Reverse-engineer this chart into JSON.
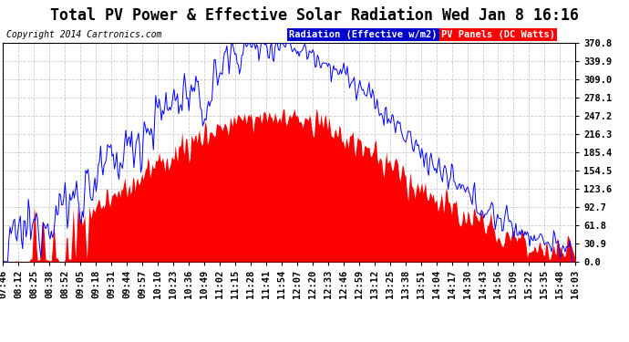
{
  "title": "Total PV Power & Effective Solar Radiation Wed Jan 8 16:16",
  "copyright": "Copyright 2014 Cartronics.com",
  "legend_radiation": "Radiation (Effective w/m2)",
  "legend_panels": "PV Panels (DC Watts)",
  "legend_radiation_bg": "#0000cd",
  "legend_panels_bg": "#ff0000",
  "y_ticks": [
    0.0,
    30.9,
    61.8,
    92.7,
    123.6,
    154.5,
    185.4,
    216.3,
    247.2,
    278.1,
    309.0,
    339.9,
    370.8
  ],
  "y_max": 370.8,
  "y_min": 0.0,
  "background_color": "#ffffff",
  "plot_bg_color": "#ffffff",
  "grid_color": "#cccccc",
  "title_fontsize": 12,
  "copyright_fontsize": 7,
  "tick_fontsize": 7.5,
  "radiation_color": "#0000ff",
  "pv_color": "#ff0000",
  "time_labels": [
    "07:46",
    "08:12",
    "08:25",
    "08:38",
    "08:52",
    "09:05",
    "09:18",
    "09:31",
    "09:44",
    "09:57",
    "10:10",
    "10:23",
    "10:36",
    "10:49",
    "11:02",
    "11:15",
    "11:28",
    "11:41",
    "11:54",
    "12:07",
    "12:20",
    "12:33",
    "12:46",
    "12:59",
    "13:12",
    "13:25",
    "13:38",
    "13:51",
    "14:04",
    "14:17",
    "14:30",
    "14:43",
    "14:56",
    "15:09",
    "15:22",
    "15:35",
    "15:48",
    "16:03"
  ]
}
